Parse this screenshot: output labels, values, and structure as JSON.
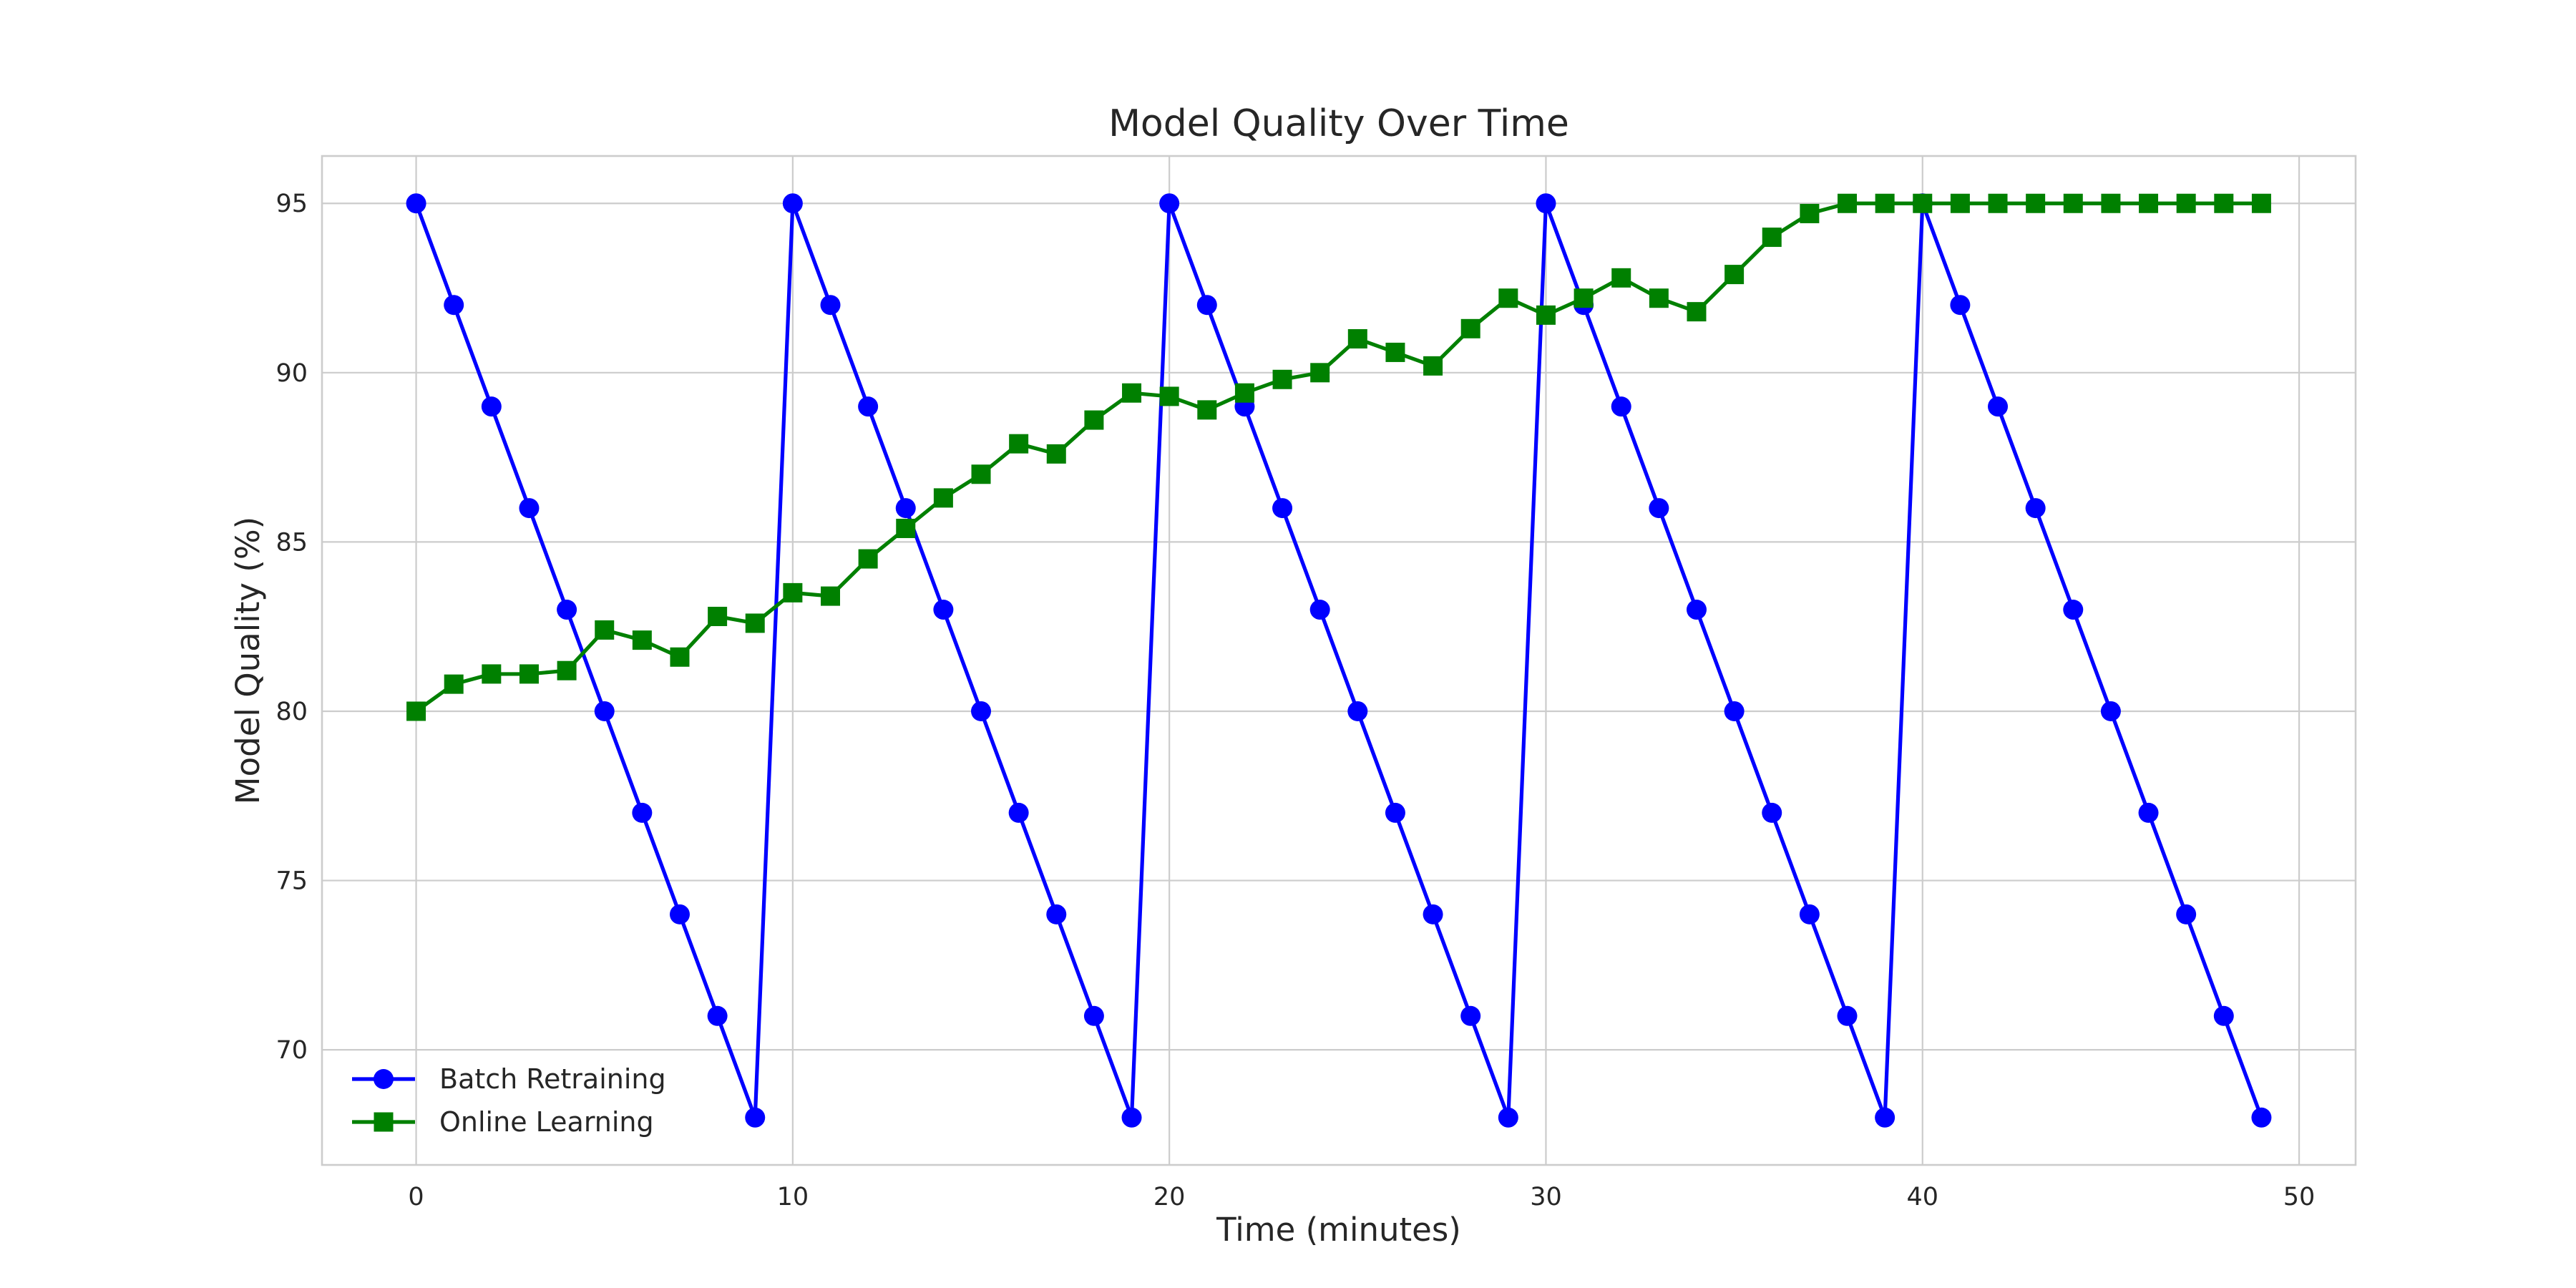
{
  "chart_data": {
    "type": "line",
    "title": "Model Quality Over Time",
    "xlabel": "Time (minutes)",
    "ylabel": "Model Quality (%)",
    "xlim": [
      -2.5,
      51.5
    ],
    "ylim": [
      66.6,
      96.4
    ],
    "xticks": [
      0,
      10,
      20,
      30,
      40,
      50
    ],
    "yticks": [
      70,
      75,
      80,
      85,
      90,
      95
    ],
    "grid": true,
    "legend_position": "lower-left",
    "x": [
      0,
      1,
      2,
      3,
      4,
      5,
      6,
      7,
      8,
      9,
      10,
      11,
      12,
      13,
      14,
      15,
      16,
      17,
      18,
      19,
      20,
      21,
      22,
      23,
      24,
      25,
      26,
      27,
      28,
      29,
      30,
      31,
      32,
      33,
      34,
      35,
      36,
      37,
      38,
      39,
      40,
      41,
      42,
      43,
      44,
      45,
      46,
      47,
      48,
      49
    ],
    "series": [
      {
        "name": "Batch Retraining",
        "color": "#0000ff",
        "marker": "circle",
        "values": [
          95,
          92,
          89,
          86,
          83,
          80,
          77,
          74,
          71,
          68,
          95,
          92,
          89,
          86,
          83,
          80,
          77,
          74,
          71,
          68,
          95,
          92,
          89,
          86,
          83,
          80,
          77,
          74,
          71,
          68,
          95,
          92,
          89,
          86,
          83,
          80,
          77,
          74,
          71,
          68,
          95,
          92,
          89,
          86,
          83,
          80,
          77,
          74,
          71,
          68
        ]
      },
      {
        "name": "Online Learning",
        "color": "#008000",
        "marker": "square",
        "values": [
          80.0,
          80.8,
          81.1,
          81.1,
          81.2,
          82.4,
          82.1,
          81.6,
          82.8,
          82.6,
          83.5,
          83.4,
          84.5,
          85.4,
          86.3,
          87.0,
          87.9,
          87.6,
          88.6,
          89.4,
          89.3,
          88.9,
          89.4,
          89.8,
          90.0,
          91.0,
          90.6,
          90.2,
          91.3,
          92.2,
          91.7,
          92.2,
          92.8,
          92.2,
          91.8,
          92.9,
          94.0,
          94.7,
          95.0,
          95.0,
          95.0,
          95.0,
          95.0,
          95.0,
          95.0,
          95.0,
          95.0,
          95.0,
          95.0,
          95.0
        ]
      }
    ]
  }
}
